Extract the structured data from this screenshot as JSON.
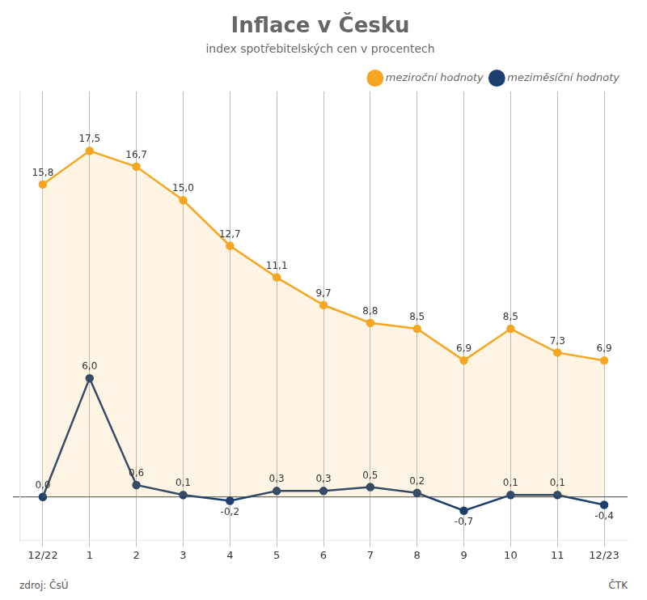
{
  "chart_data": {
    "type": "line",
    "title": "Inflace v Česku",
    "subtitle": "index spotřebitelských cen v procentech",
    "categories": [
      "12/22",
      "1",
      "2",
      "3",
      "4",
      "5",
      "6",
      "7",
      "8",
      "9",
      "10",
      "11",
      "12/23"
    ],
    "series": [
      {
        "name": "meziroční hodnoty",
        "color": "#F5A623",
        "values": [
          15.8,
          17.5,
          16.7,
          15.0,
          12.7,
          11.1,
          9.7,
          8.8,
          8.5,
          6.9,
          8.5,
          7.3,
          6.9
        ],
        "value_labels": [
          "15,8",
          "17,5",
          "16,7",
          "15,0",
          "12,7",
          "11,1",
          "9,7",
          "8,8",
          "8,5",
          "6,9",
          "8,5",
          "7,3",
          "6,9"
        ]
      },
      {
        "name": "meziměsíční hodnoty",
        "color": "#1C3F6E",
        "values": [
          0.0,
          6.0,
          0.6,
          0.1,
          -0.2,
          0.3,
          0.3,
          0.5,
          0.2,
          -0.7,
          0.1,
          0.1,
          -0.4
        ],
        "value_labels": [
          "0,0",
          "6,0",
          "0,6",
          "0,1",
          "-0,2",
          "0,3",
          "0,3",
          "0,5",
          "0,2",
          "-0,7",
          "0,1",
          "0,1",
          "-0,4"
        ]
      }
    ],
    "ylim": [
      -2.2,
      20.5
    ],
    "yticks": [
      0
    ],
    "grid": true,
    "legend": "upper right",
    "data_labels": true,
    "tick_labels": "x",
    "marker": "circle",
    "annotations": [
      "zdroj: ČsÚ",
      "ČTK"
    ]
  }
}
